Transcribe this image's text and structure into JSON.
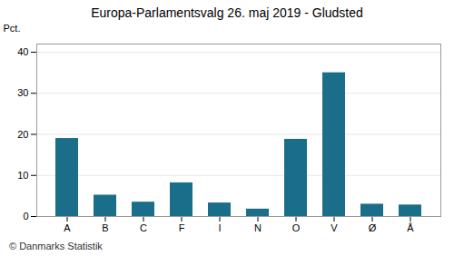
{
  "chart_data": {
    "type": "bar",
    "title": "Europa-Parlamentsvalg 26. maj 2019 - Gludsted",
    "categories": [
      "A",
      "B",
      "C",
      "F",
      "I",
      "N",
      "O",
      "V",
      "Ø",
      "Å"
    ],
    "values": [
      19.0,
      5.2,
      3.5,
      8.2,
      3.3,
      1.8,
      18.8,
      35.0,
      3.0,
      2.8
    ],
    "color": "#1a6e8a",
    "ylabel": "Pct.",
    "ylim": [
      0,
      42
    ],
    "yticks": [
      0,
      10,
      20,
      30,
      40
    ],
    "grid": true,
    "caption": "© Danmarks Statistik"
  }
}
